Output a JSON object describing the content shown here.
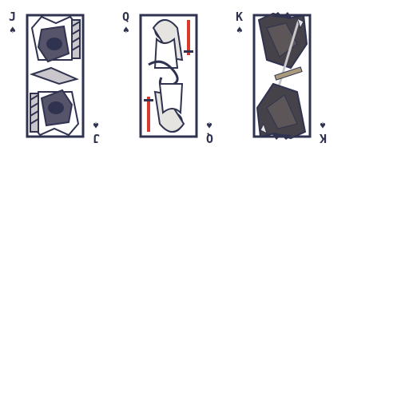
{
  "cards": [
    {
      "rank": "J",
      "suit": "♠",
      "figure": "jack",
      "accent": "#5a5a70"
    },
    {
      "rank": "Q",
      "suit": "♠",
      "figure": "queen",
      "accent": "#d93a2a"
    },
    {
      "rank": "K",
      "suit": "♠",
      "figure": "king",
      "accent": "#4a4548"
    }
  ],
  "colors": {
    "ink": "#2f3350",
    "paper": "#ffffff",
    "shade": "#c9c7cc",
    "dark": "#46424a",
    "red": "#d93a2a"
  }
}
